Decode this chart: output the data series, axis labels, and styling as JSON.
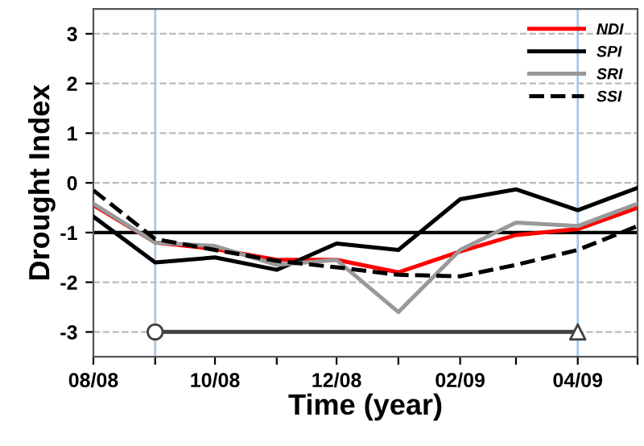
{
  "chart_data": {
    "type": "line",
    "xlabel": "Time (year)",
    "ylabel": "Drought Index",
    "x": [
      "2008-08",
      "2008-09",
      "2008-10",
      "2008-11",
      "2008-12",
      "2009-01",
      "2009-02",
      "2009-03",
      "2009-04",
      "2009-05"
    ],
    "series": [
      {
        "name": "NDI",
        "color": "#ff0000",
        "line_style": "solid",
        "values": [
          -0.45,
          -1.2,
          -1.33,
          -1.55,
          -1.55,
          -1.8,
          -1.38,
          -1.05,
          -0.93,
          -0.5
        ]
      },
      {
        "name": "SPI",
        "color": "#000000",
        "line_style": "solid",
        "values": [
          -0.68,
          -1.6,
          -1.5,
          -1.75,
          -1.22,
          -1.35,
          -0.33,
          -0.13,
          -0.55,
          -0.1
        ]
      },
      {
        "name": "SRI",
        "color": "#999999",
        "line_style": "solid",
        "values": [
          -0.42,
          -1.2,
          -1.27,
          -1.65,
          -1.55,
          -2.6,
          -1.35,
          -0.8,
          -0.87,
          -0.42
        ]
      },
      {
        "name": "SSI",
        "color": "#000000",
        "line_style": "dashed",
        "values": [
          -0.15,
          -1.13,
          -1.35,
          -1.57,
          -1.7,
          -1.85,
          -1.88,
          -1.65,
          -1.35,
          -0.87
        ]
      },
      {
        "type": "line",
        "color": "#404040",
        "marker": "none",
        "x": [
          "2008-09",
          "2009-04"
        ],
        "values": [
          -3,
          -3
        ]
      },
      {
        "type": "scatter",
        "color": "#404040",
        "marker": "circle",
        "x": [
          "2008-09"
        ],
        "values": [
          -3
        ]
      },
      {
        "type": "scatter",
        "color": "#404040",
        "marker": "triangle",
        "x": [
          "2009-04"
        ],
        "values": [
          -3
        ]
      }
    ],
    "ref_lines": [
      {
        "axis": "y",
        "value": -1,
        "color": "#000000",
        "line_style": "solid"
      },
      {
        "axis": "x",
        "value": "2008-09",
        "color": "#a8c8e8",
        "line_style": "solid"
      },
      {
        "axis": "x",
        "value": "2009-04",
        "color": "#a8c8e8",
        "line_style": "solid"
      }
    ],
    "xlim": [
      "2008-08",
      "2009-05"
    ],
    "xticks": [
      {
        "value": "2008-08",
        "label": "08/08"
      },
      {
        "value": "2008-09",
        "label": null
      },
      {
        "value": "2008-10",
        "label": "10/08"
      },
      {
        "value": "2008-11",
        "label": null
      },
      {
        "value": "2008-12",
        "label": "12/08"
      },
      {
        "value": "2009-01",
        "label": null
      },
      {
        "value": "2009-02",
        "label": "02/09"
      },
      {
        "value": "2009-03",
        "label": null
      },
      {
        "value": "2009-04",
        "label": "04/09"
      },
      {
        "value": "2009-05",
        "label": null
      }
    ],
    "ylim": [
      -3.5,
      3.5
    ],
    "yticks": [
      -3,
      -2,
      -1,
      0,
      1,
      2,
      3
    ],
    "grid": "y",
    "legend": "top right",
    "marker": "none"
  }
}
